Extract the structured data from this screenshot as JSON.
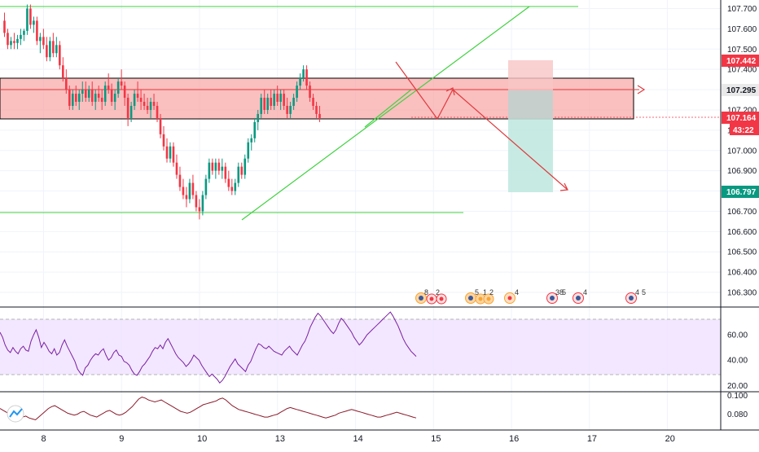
{
  "chart_data": [
    {
      "type": "candlestick",
      "panel": "price",
      "y_ticks": [
        "107.700",
        "107.600",
        "107.500",
        "107.400",
        "107.300",
        "107.200",
        "107.100",
        "107.000",
        "106.900",
        "106.800",
        "106.700",
        "106.600",
        "106.500",
        "106.400",
        "106.300"
      ],
      "ylim": [
        106.23,
        107.72
      ],
      "x_ticks": [
        "8",
        "9",
        "10",
        "13",
        "14",
        "15",
        "16",
        "17",
        "20"
      ],
      "x_tick_index": [
        0,
        24,
        48,
        72,
        96,
        120,
        144,
        168,
        192
      ],
      "candles_ohlc": [
        [
          107.64,
          107.68,
          107.56,
          107.58
        ],
        [
          107.58,
          107.6,
          107.5,
          107.52
        ],
        [
          107.52,
          107.56,
          107.5,
          107.54
        ],
        [
          107.54,
          107.58,
          107.5,
          107.53
        ],
        [
          107.53,
          107.57,
          107.5,
          107.55
        ],
        [
          107.55,
          107.6,
          107.52,
          107.57
        ],
        [
          107.57,
          107.6,
          107.54,
          107.59
        ],
        [
          107.59,
          107.72,
          107.57,
          107.7
        ],
        [
          107.7,
          107.72,
          107.6,
          107.62
        ],
        [
          107.62,
          107.66,
          107.58,
          107.64
        ],
        [
          107.64,
          107.66,
          107.52,
          107.54
        ],
        [
          107.54,
          107.58,
          107.48,
          107.56
        ],
        [
          107.56,
          107.6,
          107.5,
          107.52
        ],
        [
          107.52,
          107.56,
          107.44,
          107.46
        ],
        [
          107.46,
          107.56,
          107.44,
          107.54
        ],
        [
          107.54,
          107.58,
          107.46,
          107.48
        ],
        [
          107.48,
          107.56,
          107.46,
          107.52
        ],
        [
          107.52,
          107.54,
          107.4,
          107.42
        ],
        [
          107.42,
          107.46,
          107.34,
          107.36
        ],
        [
          107.36,
          107.4,
          107.28,
          107.3
        ],
        [
          107.3,
          107.32,
          107.2,
          107.22
        ],
        [
          107.22,
          107.3,
          107.2,
          107.28
        ],
        [
          107.28,
          107.32,
          107.22,
          107.24
        ],
        [
          107.24,
          107.3,
          107.2,
          107.28
        ],
        [
          107.28,
          107.34,
          107.24,
          107.3
        ],
        [
          107.3,
          107.34,
          107.24,
          107.26
        ],
        [
          107.26,
          107.32,
          107.24,
          107.3
        ],
        [
          107.3,
          107.34,
          107.22,
          107.24
        ],
        [
          107.24,
          107.3,
          107.2,
          107.28
        ],
        [
          107.28,
          107.32,
          107.24,
          107.26
        ],
        [
          107.26,
          107.3,
          107.2,
          107.24
        ],
        [
          107.24,
          107.34,
          107.22,
          107.32
        ],
        [
          107.32,
          107.38,
          107.28,
          107.3
        ],
        [
          107.3,
          107.33,
          107.22,
          107.24
        ],
        [
          107.24,
          107.3,
          107.2,
          107.28
        ],
        [
          107.28,
          107.36,
          107.26,
          107.34
        ],
        [
          107.34,
          107.4,
          107.3,
          107.32
        ],
        [
          107.32,
          107.34,
          107.22,
          107.26
        ],
        [
          107.26,
          107.28,
          107.12,
          107.16
        ],
        [
          107.16,
          107.24,
          107.14,
          107.22
        ],
        [
          107.22,
          107.3,
          107.2,
          107.28
        ],
        [
          107.28,
          107.34,
          107.24,
          107.26
        ],
        [
          107.26,
          107.3,
          107.2,
          107.24
        ],
        [
          107.24,
          107.28,
          107.2,
          107.22
        ],
        [
          107.22,
          107.26,
          107.18,
          107.2
        ],
        [
          107.2,
          107.26,
          107.16,
          107.24
        ],
        [
          107.24,
          107.28,
          107.2,
          107.22
        ],
        [
          107.22,
          107.24,
          107.14,
          107.16
        ],
        [
          107.16,
          107.18,
          107.06,
          107.08
        ],
        [
          107.08,
          107.12,
          107.0,
          107.02
        ],
        [
          107.02,
          107.06,
          106.94,
          106.96
        ],
        [
          106.96,
          107.04,
          106.94,
          107.02
        ],
        [
          107.02,
          107.04,
          106.92,
          106.94
        ],
        [
          106.94,
          106.98,
          106.86,
          106.88
        ],
        [
          106.88,
          106.92,
          106.8,
          106.82
        ],
        [
          106.82,
          106.86,
          106.76,
          106.78
        ],
        [
          106.78,
          106.82,
          106.72,
          106.76
        ],
        [
          106.76,
          106.86,
          106.74,
          106.84
        ],
        [
          106.84,
          106.88,
          106.76,
          106.78
        ],
        [
          106.78,
          106.8,
          106.7,
          106.72
        ],
        [
          106.72,
          106.76,
          106.66,
          106.7
        ],
        [
          106.7,
          106.8,
          106.68,
          106.78
        ],
        [
          106.78,
          106.88,
          106.76,
          106.86
        ],
        [
          106.86,
          106.96,
          106.84,
          106.94
        ],
        [
          106.94,
          106.96,
          106.88,
          106.9
        ],
        [
          106.9,
          106.96,
          106.86,
          106.94
        ],
        [
          106.94,
          106.96,
          106.88,
          106.9
        ],
        [
          106.9,
          106.96,
          106.86,
          106.92
        ],
        [
          106.92,
          106.94,
          106.84,
          106.86
        ],
        [
          106.86,
          106.9,
          106.8,
          106.82
        ],
        [
          106.82,
          106.86,
          106.78,
          106.8
        ],
        [
          106.8,
          106.86,
          106.78,
          106.84
        ],
        [
          106.84,
          106.94,
          106.82,
          106.92
        ],
        [
          106.92,
          106.94,
          106.86,
          106.88
        ],
        [
          106.88,
          106.98,
          106.86,
          106.96
        ],
        [
          106.96,
          107.06,
          106.94,
          107.04
        ],
        [
          107.04,
          107.08,
          107.0,
          107.06
        ],
        [
          107.06,
          107.16,
          107.04,
          107.14
        ],
        [
          107.14,
          107.2,
          107.1,
          107.18
        ],
        [
          107.18,
          107.28,
          107.16,
          107.26
        ],
        [
          107.26,
          107.3,
          107.18,
          107.2
        ],
        [
          107.2,
          107.28,
          107.18,
          107.26
        ],
        [
          107.26,
          107.3,
          107.2,
          107.22
        ],
        [
          107.22,
          107.3,
          107.2,
          107.28
        ],
        [
          107.28,
          107.32,
          107.22,
          107.24
        ],
        [
          107.24,
          107.3,
          107.2,
          107.28
        ],
        [
          107.28,
          107.3,
          107.2,
          107.22
        ],
        [
          107.22,
          107.26,
          107.16,
          107.18
        ],
        [
          107.18,
          107.24,
          107.16,
          107.22
        ],
        [
          107.22,
          107.28,
          107.2,
          107.26
        ],
        [
          107.26,
          107.34,
          107.24,
          107.32
        ],
        [
          107.32,
          107.38,
          107.3,
          107.36
        ],
        [
          107.36,
          107.42,
          107.34,
          107.4
        ],
        [
          107.4,
          107.42,
          107.3,
          107.32
        ],
        [
          107.32,
          107.34,
          107.24,
          107.26
        ],
        [
          107.26,
          107.28,
          107.2,
          107.22
        ],
        [
          107.22,
          107.24,
          107.16,
          107.18
        ],
        [
          107.18,
          107.22,
          107.14,
          107.16
        ]
      ]
    },
    {
      "type": "line",
      "panel": "oscillator-1",
      "y_ticks": [
        "60.00",
        "40.00",
        "20.00"
      ],
      "ylim": [
        17,
        80
      ],
      "band": [
        29,
        70
      ],
      "values": [
        62,
        58,
        52,
        48,
        46,
        50,
        47,
        45,
        49,
        51,
        48,
        47,
        55,
        60,
        64,
        58,
        50,
        54,
        51,
        47,
        45,
        49,
        44,
        46,
        52,
        56,
        51,
        47,
        43,
        39,
        33,
        30,
        28,
        34,
        36,
        40,
        43,
        45,
        44,
        47,
        49,
        44,
        40,
        42,
        46,
        48,
        44,
        43,
        39,
        38,
        36,
        32,
        29,
        28,
        31,
        35,
        37,
        40,
        43,
        47,
        50,
        49,
        52,
        49,
        54,
        57,
        53,
        49,
        45,
        42,
        40,
        38,
        35,
        37,
        40,
        44,
        42,
        40,
        36,
        33,
        30,
        27,
        29,
        27,
        25,
        22,
        24,
        27,
        31,
        35,
        38,
        41,
        37,
        35,
        33,
        31,
        36,
        39,
        44,
        49,
        53,
        52,
        50,
        49,
        51,
        49,
        47,
        46,
        45,
        44,
        47,
        49,
        51,
        48,
        46,
        44,
        48,
        52,
        55,
        60,
        66,
        70,
        74,
        77,
        75,
        72,
        69,
        66,
        63,
        61,
        64,
        69,
        73,
        71,
        68,
        65,
        62,
        58,
        55,
        52,
        54,
        57,
        60,
        62,
        64,
        66,
        68,
        70,
        72,
        74,
        76,
        78,
        75,
        71,
        67,
        62,
        57,
        53,
        50,
        47,
        45,
        43
      ]
    },
    {
      "type": "line",
      "panel": "oscillator-2",
      "y_ticks": [
        "0.100",
        "0.080"
      ],
      "ylim": [
        0.065,
        0.102
      ],
      "values": [
        0.086,
        0.084,
        0.082,
        0.08,
        0.081,
        0.079,
        0.078,
        0.077,
        0.078,
        0.076,
        0.075,
        0.074,
        0.077,
        0.08,
        0.083,
        0.086,
        0.088,
        0.089,
        0.087,
        0.085,
        0.083,
        0.081,
        0.08,
        0.079,
        0.08,
        0.082,
        0.083,
        0.081,
        0.079,
        0.078,
        0.077,
        0.079,
        0.081,
        0.083,
        0.084,
        0.082,
        0.08,
        0.079,
        0.08,
        0.082,
        0.085,
        0.088,
        0.092,
        0.096,
        0.098,
        0.097,
        0.095,
        0.094,
        0.093,
        0.094,
        0.095,
        0.093,
        0.091,
        0.089,
        0.087,
        0.085,
        0.083,
        0.082,
        0.081,
        0.082,
        0.084,
        0.086,
        0.088,
        0.09,
        0.091,
        0.092,
        0.093,
        0.094,
        0.096,
        0.097,
        0.095,
        0.092,
        0.089,
        0.087,
        0.085,
        0.084,
        0.083,
        0.082,
        0.081,
        0.08,
        0.079,
        0.078,
        0.077,
        0.077,
        0.078,
        0.079,
        0.08,
        0.082,
        0.084,
        0.086,
        0.087,
        0.086,
        0.085,
        0.084,
        0.083,
        0.082,
        0.081,
        0.08,
        0.079,
        0.078,
        0.077,
        0.076,
        0.077,
        0.078,
        0.079,
        0.081,
        0.082,
        0.083,
        0.084,
        0.085,
        0.084,
        0.083,
        0.082,
        0.081,
        0.08,
        0.079,
        0.078,
        0.077,
        0.077,
        0.078,
        0.079,
        0.08,
        0.081,
        0.082,
        0.081,
        0.08,
        0.079,
        0.078,
        0.077,
        0.076
      ]
    }
  ],
  "price_badges": {
    "stop": {
      "text": "107.442",
      "value": 107.442,
      "color": "#f23645"
    },
    "entry": {
      "text": "107.295",
      "value": 107.295,
      "color": "#e9e9e9",
      "text_color": "#131722"
    },
    "last": {
      "text": "107.164",
      "value": 107.164,
      "color": "#f23645"
    },
    "countdown": {
      "text": "43:22",
      "color": "#f23645"
    },
    "target": {
      "text": "106.797",
      "value": 106.797,
      "color": "#089981"
    }
  },
  "drawings": {
    "resistance_zone": [
      107.16,
      107.36
    ],
    "top_line": 107.7,
    "bottom_line": 106.7,
    "entry_line": 107.295,
    "position_stop": 107.45,
    "position_target": 106.8
  },
  "events": [
    "8",
    "2",
    "5",
    "1",
    "2",
    "4",
    "38",
    "5",
    "4",
    "4",
    "5"
  ],
  "colors": {
    "up_candle": "#089981",
    "down_candle": "#f23645",
    "trendline": "#41d141",
    "zone_fill": "#f8aaaa",
    "arrow": "#e03a3e",
    "rsi_line": "#7b1fa2",
    "rsi_band": "#f0e3ff",
    "osc_line": "#8b1a2b"
  }
}
